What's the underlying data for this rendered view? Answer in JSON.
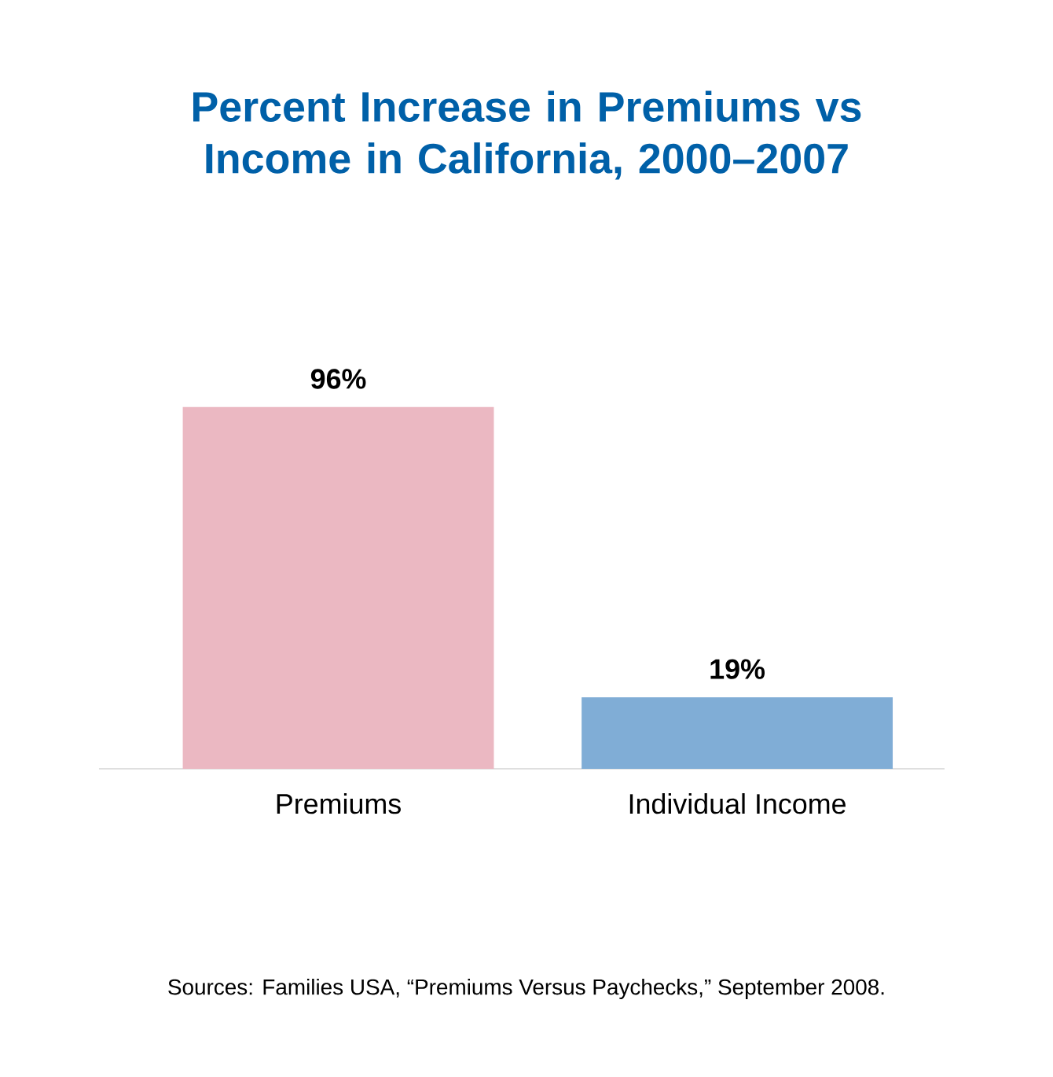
{
  "chart_data": {
    "type": "bar",
    "title": "Percent Increase in Premiums vs Income in California, 2000–2007",
    "categories": [
      "Premiums",
      "Individual Income"
    ],
    "values": [
      96,
      19
    ],
    "colors": [
      "#ebb8c2",
      "#80add6"
    ],
    "value_labels": [
      "96%",
      "19%"
    ],
    "annotations": [
      "Sources: Families USA, “Premiums Versus Paychecks,” September 2008."
    ]
  }
}
